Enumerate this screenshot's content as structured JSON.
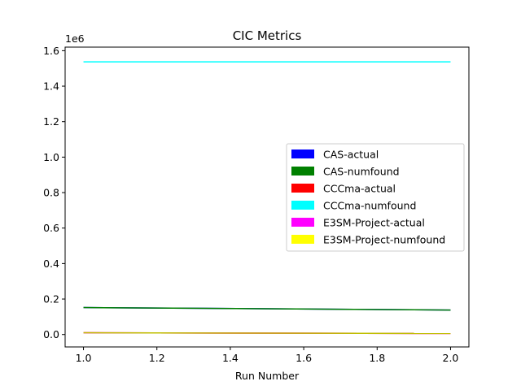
{
  "chart_data": {
    "type": "line",
    "title": "CIC Metrics",
    "xlabel": "Run Number",
    "ylabel": "",
    "y_offset_label": "1e6",
    "xlim": [
      0.95,
      2.05
    ],
    "ylim": [
      -70000,
      1620000
    ],
    "x_ticks": [
      1.0,
      1.2,
      1.4,
      1.6,
      1.8,
      2.0
    ],
    "x_tick_labels": [
      "1.0",
      "1.2",
      "1.4",
      "1.6",
      "1.8",
      "2.0"
    ],
    "y_ticks": [
      0,
      200000,
      400000,
      600000,
      800000,
      1000000,
      1200000,
      1400000,
      1600000
    ],
    "y_tick_labels": [
      "0.0",
      "0.2",
      "0.4",
      "0.6",
      "0.8",
      "1.0",
      "1.2",
      "1.4",
      "1.6"
    ],
    "x": [
      1,
      2
    ],
    "legend_position": "center-right",
    "grid": false,
    "series": [
      {
        "name": "CAS-actual",
        "color": "#0000ff",
        "values": [
          152000,
          138000
        ]
      },
      {
        "name": "CAS-numfound",
        "color": "#008000",
        "values": [
          152000,
          138000
        ]
      },
      {
        "name": "CCCma-actual",
        "color": "#ff0000",
        "values": [
          10000,
          6000
        ]
      },
      {
        "name": "CCCma-numfound",
        "color": "#00ffff",
        "values": [
          1537000,
          1537000
        ]
      },
      {
        "name": "E3SM-Project-actual",
        "color": "#ff00ff",
        "values": [
          10000,
          6000
        ]
      },
      {
        "name": "E3SM-Project-numfound",
        "color": "#bfbf00",
        "swatch_color": "#ffff00",
        "values": [
          10000,
          6000
        ]
      }
    ]
  }
}
